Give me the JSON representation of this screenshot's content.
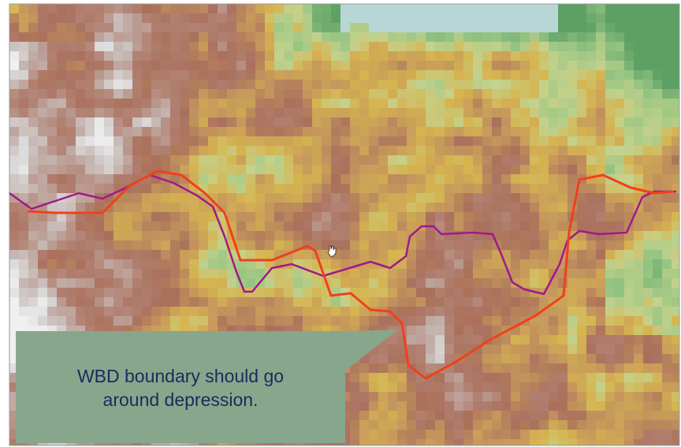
{
  "callout": {
    "lines": [
      "WBD boundary should go",
      "around depression."
    ]
  }
}
